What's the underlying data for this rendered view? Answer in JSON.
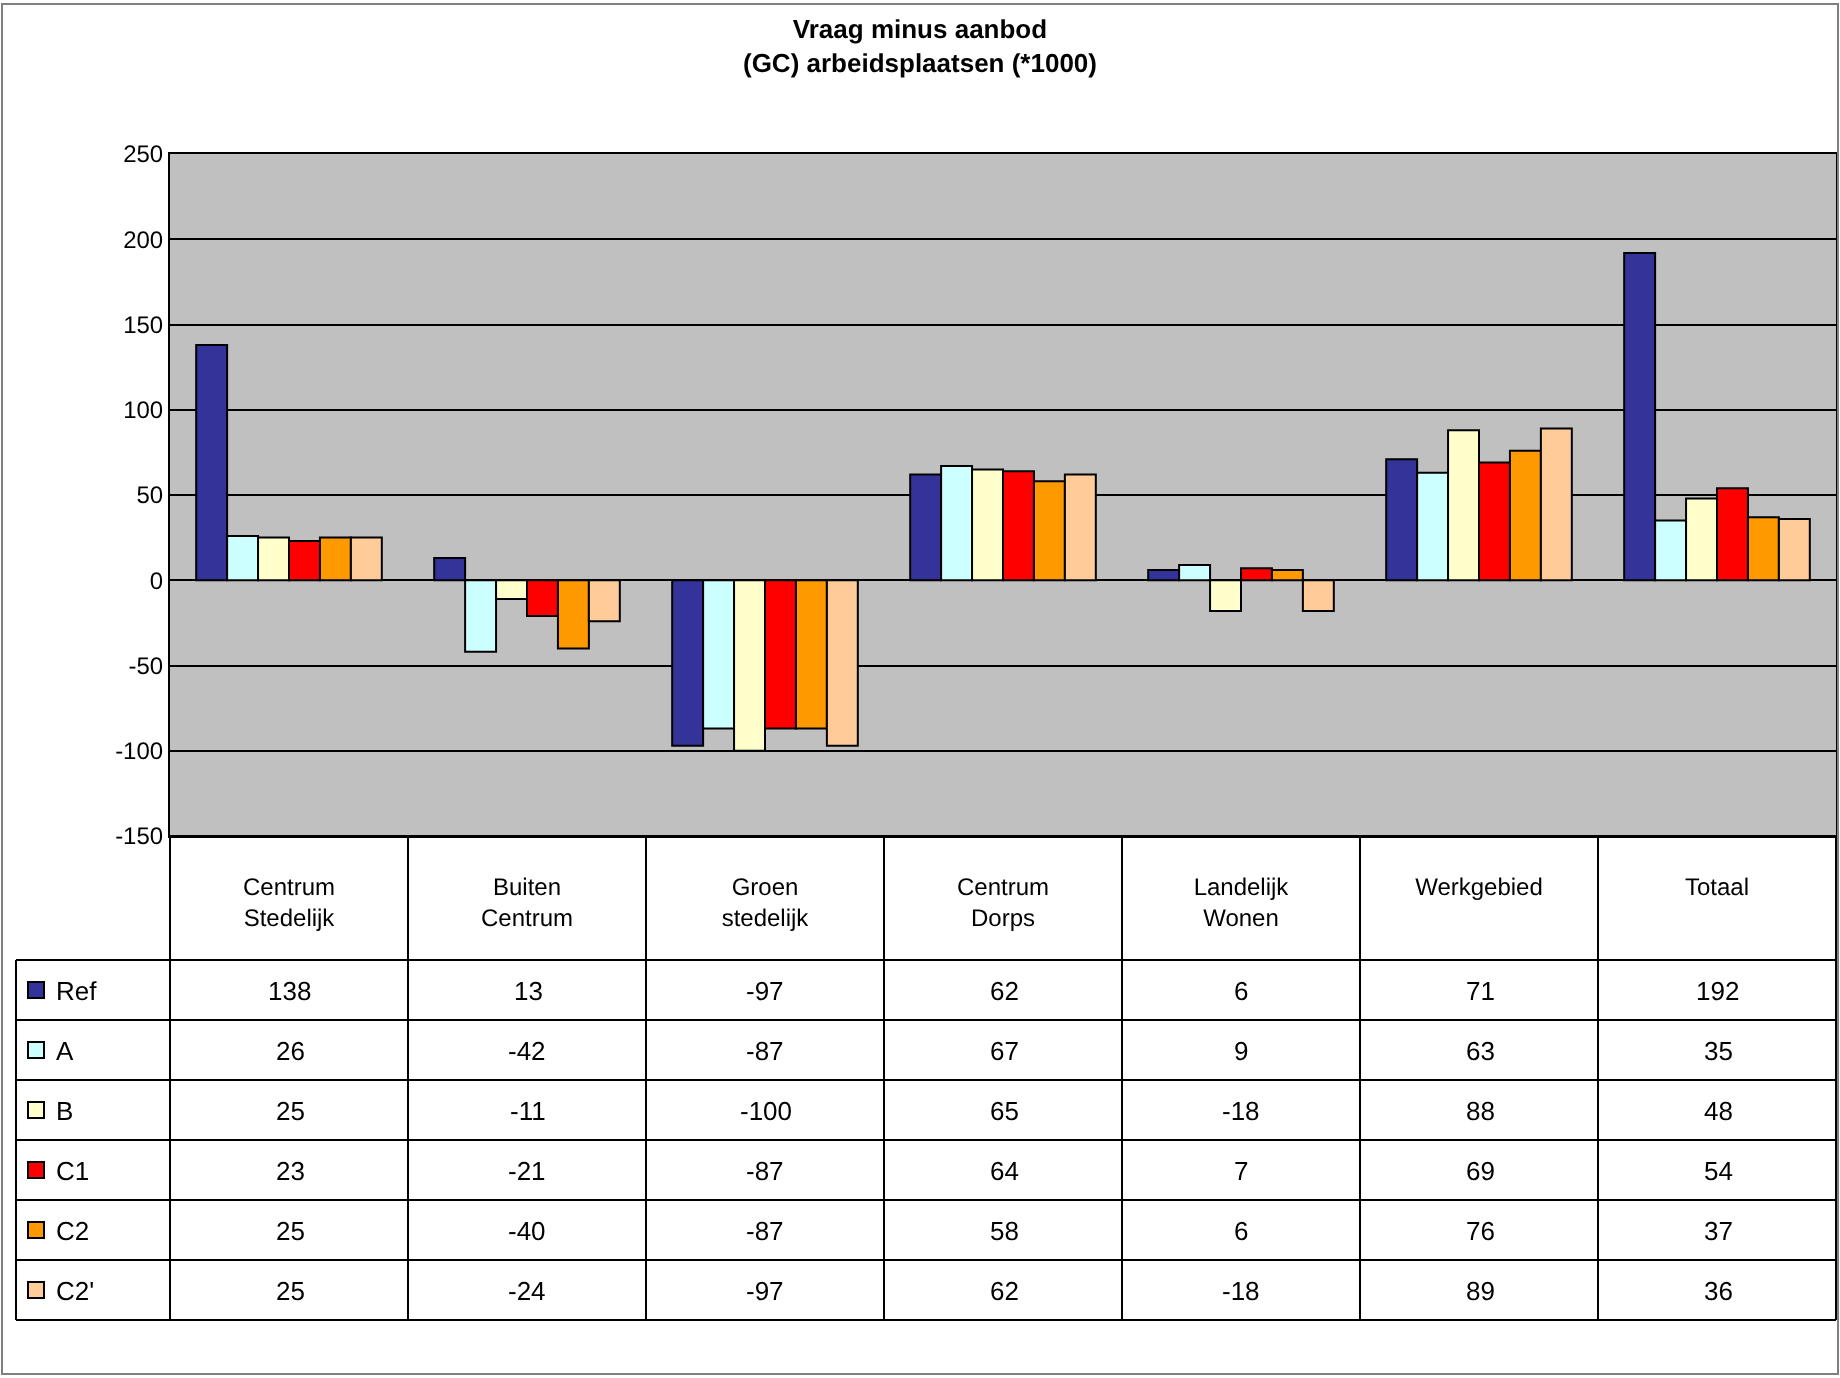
{
  "chart_data": {
    "type": "bar",
    "title": "Vraag minus aanbod\n(GC) arbeidsplaatsen (*1000)",
    "categories": [
      "Centrum\nStedelijk",
      "Buiten\nCentrum",
      "Groen\nstedelijk",
      "Centrum\nDorps",
      "Landelijk\nWonen",
      "Werkgebied",
      "Totaal"
    ],
    "series": [
      {
        "name": "Ref",
        "color": "#333399",
        "values": [
          138,
          13,
          -97,
          62,
          6,
          71,
          192
        ]
      },
      {
        "name": "A",
        "color": "#ccffff",
        "values": [
          26,
          -42,
          -87,
          67,
          9,
          63,
          35
        ]
      },
      {
        "name": "B",
        "color": "#ffffcc",
        "values": [
          25,
          -11,
          -100,
          65,
          -18,
          88,
          48
        ]
      },
      {
        "name": "C1",
        "color": "#ff0000",
        "values": [
          23,
          -21,
          -87,
          64,
          7,
          69,
          54
        ]
      },
      {
        "name": "C2",
        "color": "#ff9900",
        "values": [
          25,
          -40,
          -87,
          58,
          6,
          76,
          37
        ]
      },
      {
        "name": "C2'",
        "color": "#ffcc99",
        "values": [
          25,
          -24,
          -97,
          62,
          -18,
          89,
          36
        ]
      }
    ],
    "ylim": [
      -150,
      250
    ],
    "yticks": [
      -150,
      -100,
      -50,
      0,
      50,
      100,
      150,
      200,
      250
    ],
    "grid": "y",
    "data_labels": true,
    "legend": "bottom"
  }
}
